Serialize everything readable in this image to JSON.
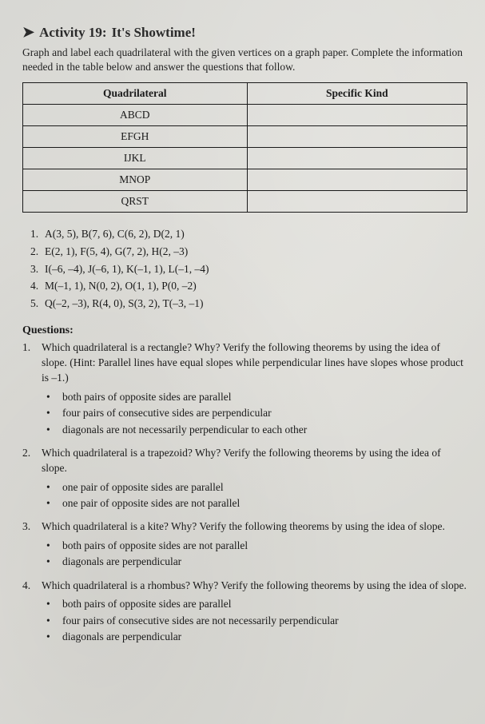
{
  "title": {
    "arrow": "➤",
    "label": "Activity 19:",
    "subtitle": "It's Showtime!"
  },
  "intro": "Graph and label each quadrilateral with the given vertices on a graph paper. Complete the information needed in the table below and answer the questions that follow.",
  "table": {
    "headers": [
      "Quadrilateral",
      "Specific Kind"
    ],
    "rows": [
      [
        "ABCD",
        ""
      ],
      [
        "EFGH",
        ""
      ],
      [
        "IJKL",
        ""
      ],
      [
        "MNOP",
        ""
      ],
      [
        "QRST",
        ""
      ]
    ]
  },
  "vertices": [
    {
      "n": "1.",
      "text": "A(3, 5), B(7, 6), C(6, 2), D(2, 1)"
    },
    {
      "n": "2.",
      "text": "E(2, 1), F(5, 4), G(7, 2), H(2, –3)"
    },
    {
      "n": "3.",
      "text": "I(–6, –4), J(–6, 1), K(–1, 1), L(–1, –4)"
    },
    {
      "n": "4.",
      "text": "M(–1, 1), N(0, 2), O(1, 1), P(0, –2)"
    },
    {
      "n": "5.",
      "text": "Q(–2, –3), R(4, 0), S(3, 2), T(–3, –1)"
    }
  ],
  "questions_heading": "Questions:",
  "questions": [
    {
      "n": "1.",
      "text": "Which quadrilateral is a rectangle? Why? Verify the following theorems by using the idea of slope. (Hint: Parallel lines have equal slopes while perpendicular lines have slopes whose product is –1.)",
      "bullets": [
        "both pairs of opposite sides are parallel",
        "four pairs of consecutive sides are perpendicular",
        "diagonals are not necessarily perpendicular to each other"
      ]
    },
    {
      "n": "2.",
      "text": "Which quadrilateral is a trapezoid? Why? Verify the following theorems by using the idea of slope.",
      "bullets": [
        "one pair of opposite sides are parallel",
        "one pair of opposite sides are not parallel"
      ]
    },
    {
      "n": "3.",
      "text": "Which quadrilateral is a kite? Why? Verify the following theorems by using the idea of slope.",
      "bullets": [
        "both pairs of opposite sides are not parallel",
        "diagonals are perpendicular"
      ]
    },
    {
      "n": "4.",
      "text": "Which quadrilateral is a rhombus? Why? Verify the following theorems by using the idea of slope.",
      "bullets": [
        "both pairs of opposite sides are parallel",
        "four pairs of consecutive sides are not necessarily perpendicular",
        "diagonals are perpendicular"
      ]
    }
  ],
  "colors": {
    "text": "#1a1a1a",
    "border": "#1a1a1a",
    "bg_light": "#e0dfda",
    "bg_dark": "#d5d5d0"
  }
}
